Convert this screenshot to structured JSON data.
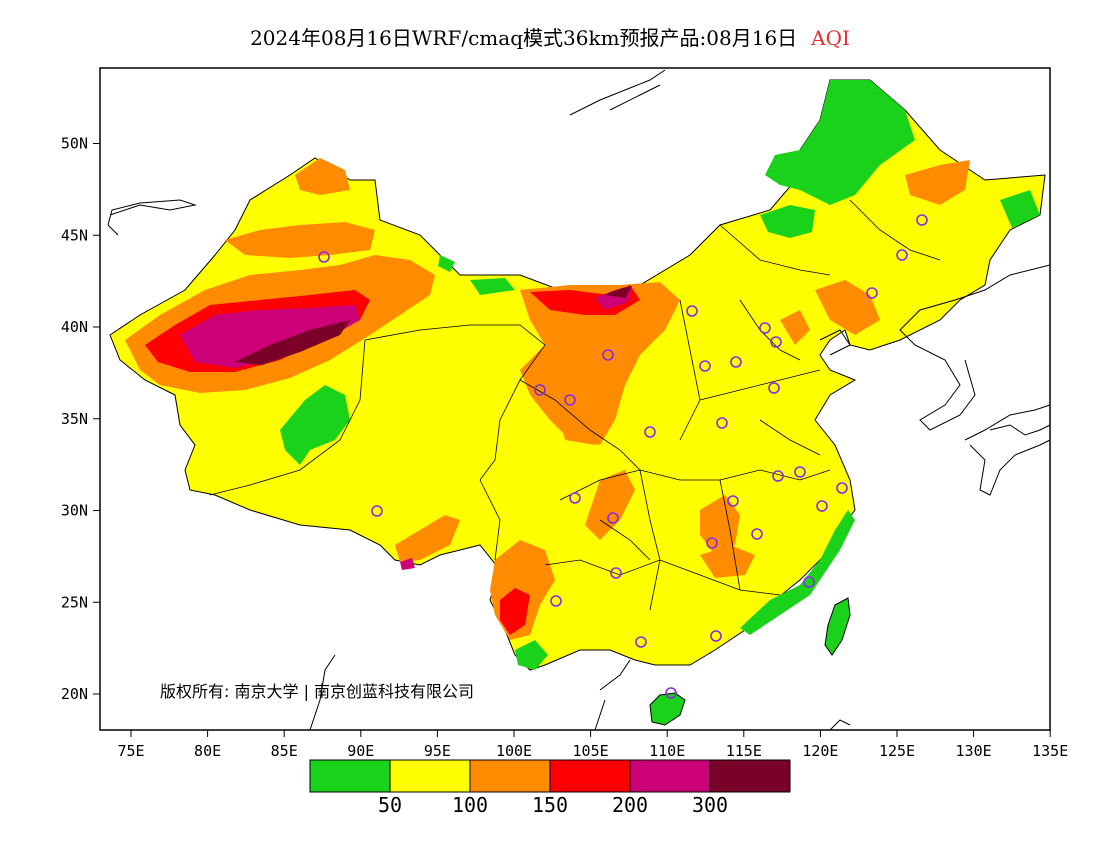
{
  "title": {
    "main": "2024年08月16日WRF/cmaq模式36km预报产品:08月16日",
    "pollutant": "AQI"
  },
  "axes": {
    "lat_labels": [
      "20N",
      "25N",
      "30N",
      "35N",
      "40N",
      "45N",
      "50N"
    ],
    "lon_labels": [
      "75E",
      "80E",
      "85E",
      "90E",
      "95E",
      "100E",
      "105E",
      "110E",
      "115E",
      "120E",
      "125E",
      "130E",
      "135E"
    ],
    "lon_range": [
      73,
      135
    ],
    "lat_range": [
      18,
      54
    ]
  },
  "copyright": "版权所有: 南京大学 | 南京创蓝科技有限公司",
  "legend": {
    "colors": [
      "#1ad21a",
      "#ffff00",
      "#ff8c00",
      "#ff0000",
      "#cc0077",
      "#7a0028"
    ],
    "labels": [
      "50",
      "100",
      "150",
      "200",
      "300"
    ]
  },
  "colors": {
    "good": "#1ad21a",
    "moderate": "#ffff00",
    "usg": "#ff8c00",
    "unhealthy": "#ff0000",
    "very_unhealthy": "#cc0077",
    "hazardous": "#7a0028",
    "city_marker": "#8a2be2"
  }
}
